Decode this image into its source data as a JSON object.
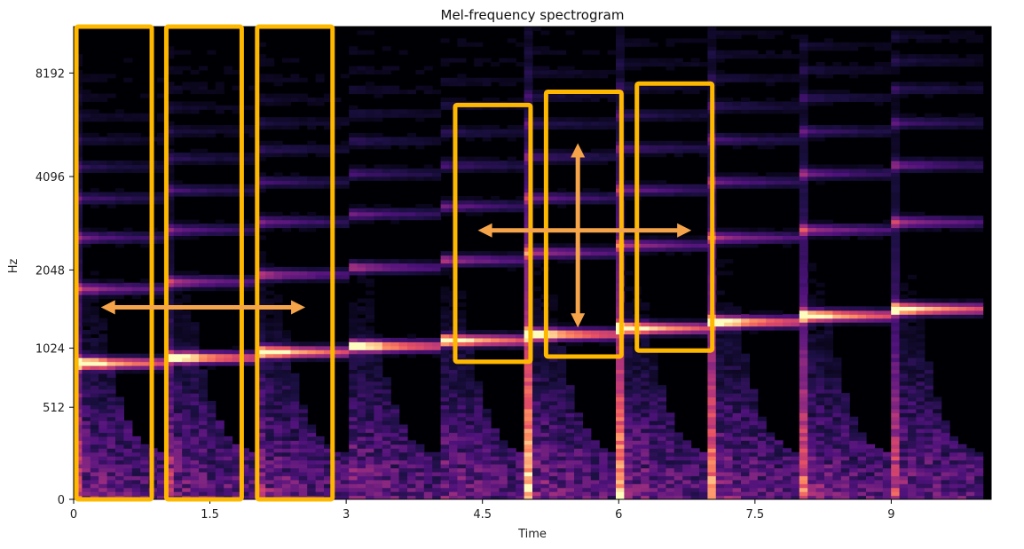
{
  "chart_data": {
    "type": "heatmap",
    "title": "Mel-frequency spectrogram",
    "xlabel": "Time",
    "ylabel": "Hz",
    "x_ticks": [
      "0",
      "1.5",
      "3",
      "4.5",
      "6",
      "7.5",
      "9"
    ],
    "x_tick_values": [
      0,
      1.5,
      3,
      4.5,
      6,
      7.5,
      9
    ],
    "y_ticks": [
      "0",
      "512",
      "1024",
      "2048",
      "4096",
      "8192"
    ],
    "y_tick_values": [
      0,
      512,
      1024,
      2048,
      4096,
      8192
    ],
    "y_scale": "mel",
    "xlim": [
      0,
      10.1
    ],
    "ylim": [
      0,
      11025
    ],
    "colormap": "magma",
    "notes": [
      {
        "onset": 0.0,
        "f0": 880
      },
      {
        "onset": 1.0,
        "f0": 932
      },
      {
        "onset": 2.0,
        "f0": 988
      },
      {
        "onset": 3.0,
        "f0": 1047
      },
      {
        "onset": 4.0,
        "f0": 1109
      },
      {
        "onset": 5.0,
        "f0": 1175
      },
      {
        "onset": 6.0,
        "f0": 1245
      },
      {
        "onset": 7.0,
        "f0": 1319
      },
      {
        "onset": 8.0,
        "f0": 1397
      },
      {
        "onset": 9.0,
        "f0": 1480
      }
    ],
    "note_duration": 1.0,
    "annotations": {
      "highlight_color": "#ffb800",
      "arrow_color": "#f5a44a",
      "boxes": [
        {
          "t0": 0.03,
          "t1": 0.86,
          "f_low": 0,
          "f_high": 11025
        },
        {
          "t0": 1.02,
          "t1": 1.85,
          "f_low": 0,
          "f_high": 11025
        },
        {
          "t0": 2.02,
          "t1": 2.85,
          "f_low": 0,
          "f_high": 11025
        },
        {
          "t0": 4.2,
          "t1": 5.03,
          "f_low": 890,
          "f_high": 6650
        },
        {
          "t0": 5.2,
          "t1": 6.03,
          "f_low": 940,
          "f_high": 7250
        },
        {
          "t0": 6.2,
          "t1": 7.03,
          "f_low": 1000,
          "f_high": 7650
        }
      ],
      "arrows": [
        {
          "t0": 0.3,
          "t1": 2.55,
          "f0": 1500,
          "f1": 1500
        },
        {
          "t0": 4.45,
          "t1": 6.8,
          "f0": 2780,
          "f1": 2780
        },
        {
          "t0": 5.55,
          "t1": 5.55,
          "f0": 1250,
          "f1": 5150
        }
      ]
    }
  }
}
